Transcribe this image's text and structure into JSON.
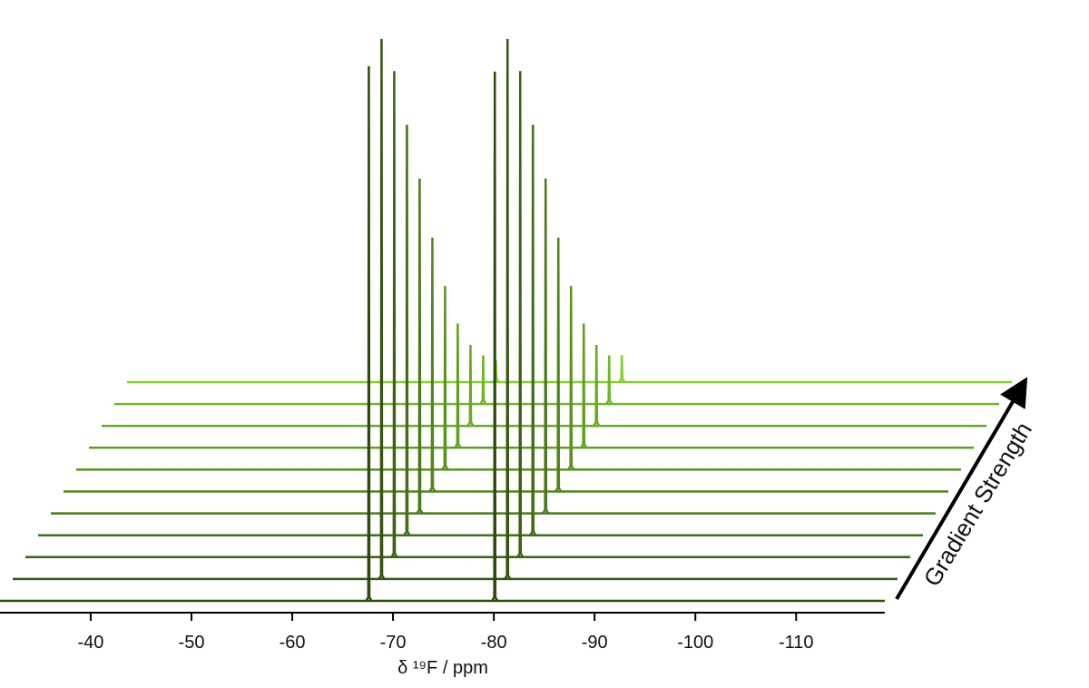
{
  "chart_data": {
    "type": "stack",
    "x_label": "δ ¹⁹F / ppm",
    "depth_label": "Gradient Strength",
    "x": [
      -67.6,
      -80.1
    ],
    "xlim": [
      -31,
      -118.8
    ],
    "xticks": [
      -40,
      -50,
      -60,
      -70,
      -80,
      -90,
      -100,
      -110
    ],
    "series": [
      {
        "color": "#2e4a0c",
        "values": [
          99,
          98
        ]
      },
      {
        "color": "#35560f",
        "values": [
          100,
          100
        ]
      },
      {
        "color": "#3c6212",
        "values": [
          90,
          90
        ]
      },
      {
        "color": "#436e15",
        "values": [
          76,
          76
        ]
      },
      {
        "color": "#4a7a18",
        "values": [
          62,
          62
        ]
      },
      {
        "color": "#52861b",
        "values": [
          47,
          47
        ]
      },
      {
        "color": "#5a921e",
        "values": [
          34,
          34
        ]
      },
      {
        "color": "#629e21",
        "values": [
          23,
          23
        ]
      },
      {
        "color": "#6aaa24",
        "values": [
          15,
          15
        ]
      },
      {
        "color": "#72b627",
        "values": [
          9,
          9
        ]
      },
      {
        "color": "#84d02c",
        "values": [
          4,
          5
        ]
      }
    ]
  }
}
